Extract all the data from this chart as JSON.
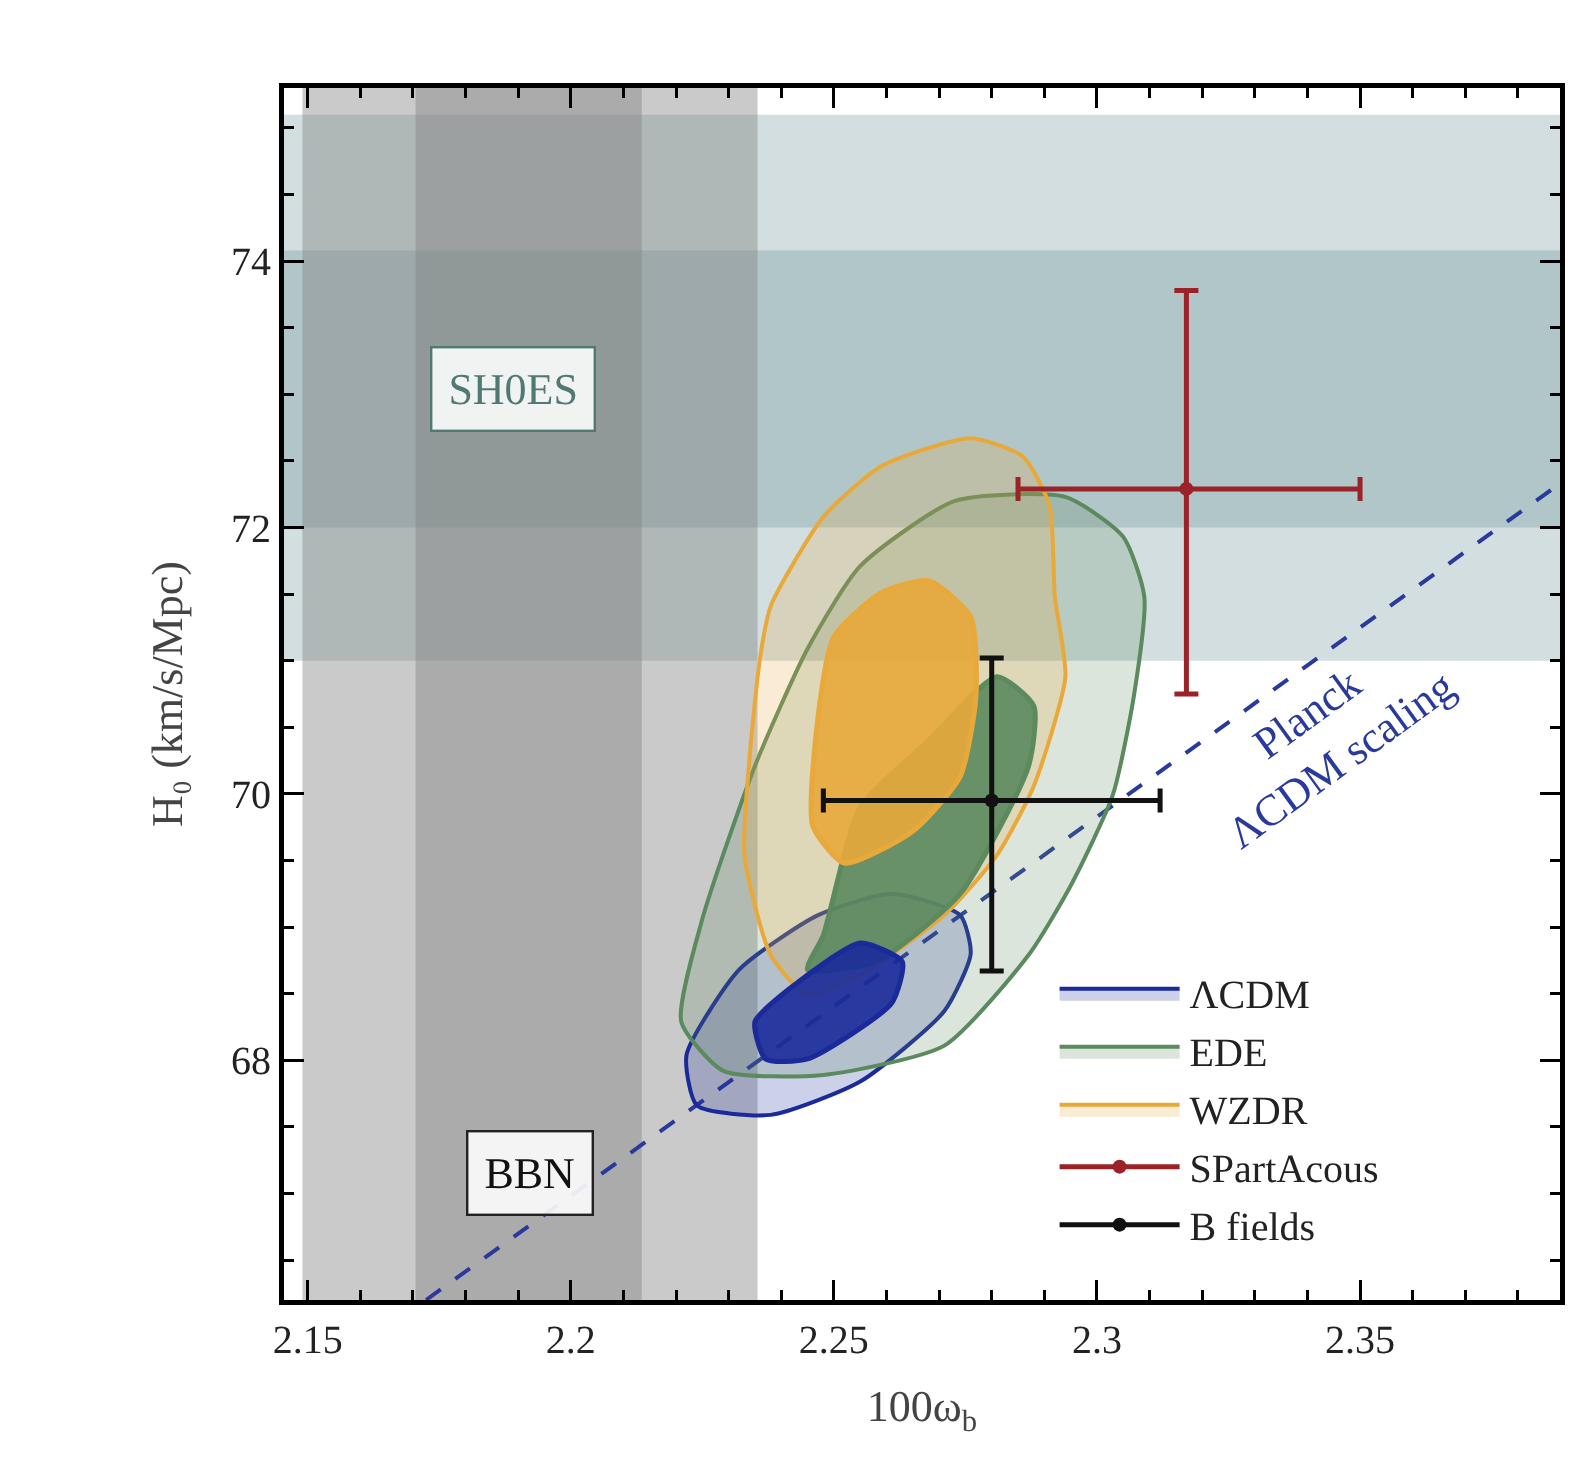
{
  "chart_data": {
    "type": "area",
    "xlabel": "100ω$_{b}$",
    "ylabel": "H₀ (km/s/Mpc)",
    "xlim": [
      2.1455,
      2.388
    ],
    "ylim": [
      66.2,
      75.3
    ],
    "xticks": [
      2.15,
      2.2,
      2.25,
      2.3,
      2.35
    ],
    "yticks": [
      68,
      70,
      72,
      74
    ],
    "grid": false,
    "legend": "bottom right",
    "bands": [
      {
        "axis": "y",
        "from": 71.0,
        "to": 75.1,
        "color": "#5f8a8b"
      },
      {
        "axis": "y",
        "from": 72.0,
        "to": 74.08,
        "color": "#5f8a8b",
        "label": "SH0ES"
      },
      {
        "axis": "x",
        "from": 2.149,
        "to": 2.2355,
        "color": "#808080",
        "label": "BBN"
      },
      {
        "axis": "x",
        "from": 2.1705,
        "to": 2.2135,
        "color": "#808080"
      }
    ],
    "annotations": [
      "Planck\nΛCDM scaling"
    ],
    "series": [
      {
        "type": "line",
        "color": "#2a3a9c",
        "line_style": "dashed",
        "x": [
          2.1725,
          2.388
        ],
        "values": [
          66.2,
          72.33
        ]
      },
      {
        "name": "ΛCDM",
        "color": "#1a2a9a",
        "x": [
          2.261,
          2.274,
          2.276,
          2.271,
          2.255,
          2.238,
          2.224,
          2.222,
          2.232,
          2.247,
          2.261
        ],
        "values": [
          69.25,
          69.09,
          68.8,
          68.37,
          67.84,
          67.59,
          67.66,
          68.04,
          68.68,
          69.09,
          69.25
        ]
      },
      {
        "name": "EDE",
        "color": "#5b8a5e",
        "x": [
          2.294,
          2.305,
          2.309,
          2.307,
          2.303,
          2.295,
          2.287,
          2.271,
          2.248,
          2.229,
          2.221,
          2.225,
          2.235,
          2.245,
          2.255,
          2.273,
          2.294
        ],
        "values": [
          72.23,
          71.93,
          71.48,
          70.73,
          69.99,
          69.31,
          68.79,
          68.11,
          67.89,
          67.92,
          68.29,
          69.06,
          70.21,
          71.09,
          71.71,
          72.2,
          72.23
        ]
      },
      {
        "name": "WZDR",
        "color": "#e8a93a",
        "x": [
          2.276,
          2.286,
          2.291,
          2.292,
          2.294,
          2.288,
          2.281,
          2.271,
          2.255,
          2.245,
          2.238,
          2.233,
          2.234,
          2.236,
          2.238,
          2.248,
          2.259,
          2.276
        ],
        "values": [
          72.67,
          72.53,
          72.16,
          71.48,
          70.88,
          70.06,
          69.54,
          69.09,
          68.64,
          68.49,
          68.79,
          69.54,
          70.28,
          71.03,
          71.41,
          72.08,
          72.46,
          72.67
        ]
      },
      {
        "color": "#5b8a5e",
        "x": [
          2.281,
          2.288,
          2.287,
          2.274,
          2.258,
          2.245,
          2.248,
          2.255,
          2.268,
          2.281
        ],
        "values": [
          70.88,
          70.66,
          70.21,
          69.25,
          68.74,
          68.68,
          68.94,
          69.9,
          70.4,
          70.88
        ]
      },
      {
        "color": "#e8a93a",
        "x": [
          2.268,
          2.276,
          2.277,
          2.274,
          2.265,
          2.252,
          2.246,
          2.247,
          2.25,
          2.259,
          2.268
        ],
        "values": [
          71.6,
          71.33,
          70.73,
          70.13,
          69.72,
          69.48,
          69.76,
          70.58,
          71.18,
          71.51,
          71.6
        ]
      },
      {
        "color": "#1a2a9a",
        "x": [
          2.255,
          2.263,
          2.261,
          2.245,
          2.237,
          2.235,
          2.242,
          2.255
        ],
        "values": [
          68.88,
          68.74,
          68.43,
          68.01,
          68.01,
          68.29,
          68.55,
          68.88
        ]
      },
      {
        "type": "scatter",
        "name": "SPartAcous",
        "color": "#9b2226",
        "x": [
          2.317
        ],
        "values": [
          72.29
        ],
        "errors": [
          [
            70.75,
            73.78
          ]
        ],
        "xerrors": [
          [
            2.285,
            2.35
          ]
        ]
      },
      {
        "type": "scatter",
        "name": "B fields",
        "color": "#111111",
        "x": [
          2.28
        ],
        "values": [
          69.95
        ],
        "errors": [
          [
            68.67,
            71.02
          ]
        ],
        "xerrors": [
          [
            2.248,
            2.312
          ]
        ]
      }
    ]
  }
}
